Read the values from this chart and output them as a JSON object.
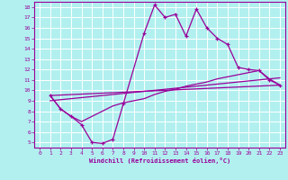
{
  "xlabel": "Windchill (Refroidissement éolien,°C)",
  "bg_color": "#b2f0f0",
  "grid_color": "#ffffff",
  "line_color": "#990099",
  "xlim": [
    -0.5,
    23.5
  ],
  "ylim": [
    4.5,
    18.5
  ],
  "xticks": [
    0,
    1,
    2,
    3,
    4,
    5,
    6,
    7,
    8,
    9,
    10,
    11,
    12,
    13,
    14,
    15,
    16,
    17,
    18,
    19,
    20,
    21,
    22,
    23
  ],
  "yticks": [
    5,
    6,
    7,
    8,
    9,
    10,
    11,
    12,
    13,
    14,
    15,
    16,
    17,
    18
  ],
  "series1_x": [
    1,
    2,
    3,
    4,
    5,
    6,
    7,
    8,
    10,
    11,
    12,
    13,
    14,
    15,
    16,
    17,
    18,
    19,
    20,
    21,
    22,
    23
  ],
  "series1_y": [
    9.5,
    8.2,
    7.5,
    6.7,
    5.0,
    4.9,
    5.3,
    8.7,
    15.5,
    18.2,
    17.0,
    17.3,
    15.2,
    17.8,
    16.0,
    15.0,
    14.4,
    12.2,
    12.0,
    11.9,
    11.0,
    10.5
  ],
  "series2_x": [
    1,
    2,
    3,
    4,
    5,
    6,
    7,
    8,
    10,
    11,
    12,
    13,
    14,
    15,
    16,
    17,
    18,
    19,
    20,
    21,
    22,
    23
  ],
  "series2_y": [
    9.5,
    8.2,
    7.5,
    7.0,
    7.5,
    8.0,
    8.5,
    8.8,
    9.2,
    9.6,
    9.9,
    10.1,
    10.4,
    10.6,
    10.8,
    11.1,
    11.3,
    11.5,
    11.7,
    11.9,
    11.1,
    10.5
  ],
  "series3_x": [
    1,
    23
  ],
  "series3_y": [
    9.5,
    10.5
  ],
  "series4_x": [
    1,
    23
  ],
  "series4_y": [
    9.0,
    11.2
  ]
}
